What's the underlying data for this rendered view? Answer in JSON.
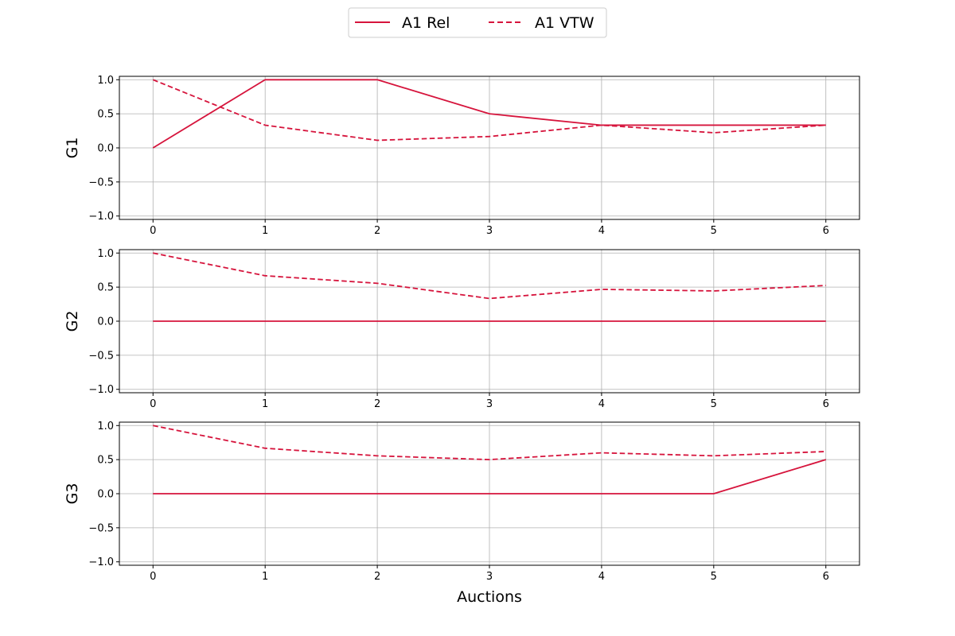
{
  "chart_data": {
    "type": "line",
    "x": [
      0,
      1,
      2,
      3,
      4,
      5,
      6
    ],
    "xlabel": "Auctions",
    "xticks": [
      "0",
      "1",
      "2",
      "3",
      "4",
      "5",
      "6"
    ],
    "ylim": [
      -1.05,
      1.05
    ],
    "yticks": [
      "1.0",
      "0.5",
      "0.0",
      "−0.5",
      "−1.0"
    ],
    "ytick_values": [
      1.0,
      0.5,
      0.0,
      -0.5,
      -1.0
    ],
    "grid": true,
    "legend": {
      "placement": "top-center",
      "entries": [
        {
          "label": "A1 Rel",
          "style": "solid"
        },
        {
          "label": "A1 VTW",
          "style": "dashed"
        }
      ]
    },
    "line_color": "#d6143c",
    "subplots": [
      {
        "ylabel": "G1",
        "series": [
          {
            "name": "A1 Rel",
            "style": "solid",
            "values": [
              0.0,
              1.0,
              1.0,
              0.5,
              0.333,
              0.333,
              0.333
            ]
          },
          {
            "name": "A1 VTW",
            "style": "dashed",
            "values": [
              1.0,
              0.333,
              0.111,
              0.167,
              0.333,
              0.222,
              0.333
            ]
          }
        ]
      },
      {
        "ylabel": "G2",
        "series": [
          {
            "name": "A1 Rel",
            "style": "solid",
            "values": [
              0.0,
              0.0,
              0.0,
              0.0,
              0.0,
              0.0,
              0.0
            ]
          },
          {
            "name": "A1 VTW",
            "style": "dashed",
            "values": [
              1.0,
              0.667,
              0.556,
              0.333,
              0.467,
              0.444,
              0.524
            ]
          }
        ]
      },
      {
        "ylabel": "G3",
        "series": [
          {
            "name": "A1 Rel",
            "style": "solid",
            "values": [
              0.0,
              0.0,
              0.0,
              0.0,
              0.0,
              0.0,
              0.5
            ]
          },
          {
            "name": "A1 VTW",
            "style": "dashed",
            "values": [
              1.0,
              0.667,
              0.556,
              0.5,
              0.6,
              0.556,
              0.619
            ]
          }
        ]
      }
    ]
  }
}
